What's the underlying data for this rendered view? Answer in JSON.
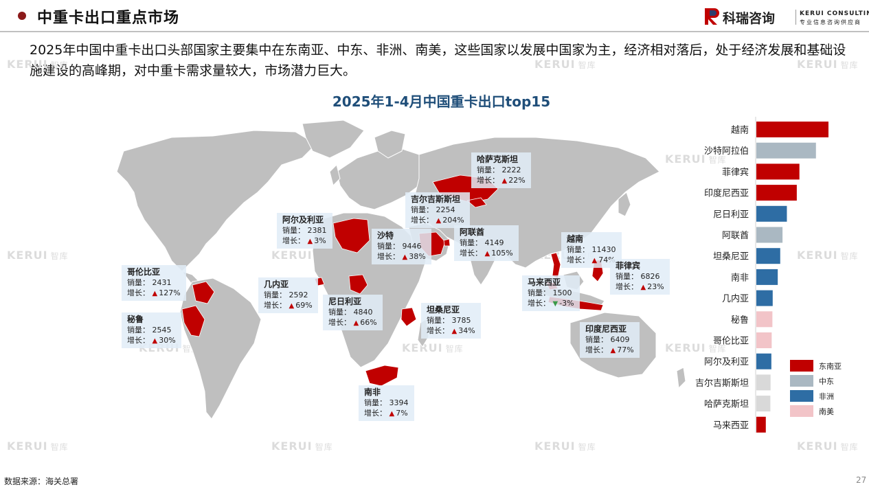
{
  "header": {
    "title": "中重卡出口重点市场",
    "logo_cn": "科瑞咨询",
    "logo_en": "KERUI CONSULTING",
    "logo_tagline": "专业信息咨询供应商"
  },
  "intro_text": "2025年中国中重卡出口头部国家主要集中在东南亚、中东、非洲、南美，这些国家以发展中国家为主，经济相对落后，处于经济发展和基础设施建设的高峰期，对中重卡需求量较大，市场潜力巨大。",
  "watermark": {
    "brand": "KERUI",
    "sub": "智库"
  },
  "labels": {
    "sales": "销量：",
    "growth": "增长："
  },
  "colors": {
    "东南亚": "#c00000",
    "中东": "#aab8c2",
    "非洲": "#2e6da4",
    "南美": "#f2c4c8",
    "other": "#d9d9d9",
    "land": "#bfbfbf"
  },
  "callouts": [
    {
      "name": "哈萨克斯坦",
      "sales": "2222",
      "growth": "22%",
      "dir": "up"
    },
    {
      "name": "吉尔吉斯斯坦",
      "sales": "2254",
      "growth": "204%",
      "dir": "up"
    },
    {
      "name": "阿尔及利亚",
      "sales": "2381",
      "growth": "3%",
      "dir": "up"
    },
    {
      "name": "沙特",
      "sales": "9446",
      "growth": "38%",
      "dir": "up"
    },
    {
      "name": "阿联酋",
      "sales": "4149",
      "growth": "105%",
      "dir": "up"
    },
    {
      "name": "越南",
      "sales": "11430",
      "growth": "74%",
      "dir": "up"
    },
    {
      "name": "菲律宾",
      "sales": "6826",
      "growth": "23%",
      "dir": "up"
    },
    {
      "name": "马来西亚",
      "sales": "1500",
      "growth": "-3%",
      "dir": "down"
    },
    {
      "name": "印度尼西亚",
      "sales": "6409",
      "growth": "77%",
      "dir": "up"
    },
    {
      "name": "哥伦比亚",
      "sales": "2431",
      "growth": "127%",
      "dir": "up"
    },
    {
      "name": "秘鲁",
      "sales": "2545",
      "growth": "30%",
      "dir": "up"
    },
    {
      "name": "几内亚",
      "sales": "2592",
      "growth": "69%",
      "dir": "up"
    },
    {
      "name": "尼日利亚",
      "sales": "4840",
      "growth": "66%",
      "dir": "up"
    },
    {
      "name": "坦桑尼亚",
      "sales": "3785",
      "growth": "34%",
      "dir": "up"
    },
    {
      "name": "南非",
      "sales": "3394",
      "growth": "7%",
      "dir": "up"
    }
  ],
  "chart_data": {
    "type": "bar",
    "orientation": "horizontal",
    "title": "2025年1-4月中国重卡出口top15",
    "categories": [
      "越南",
      "沙特阿拉伯",
      "菲律宾",
      "印度尼西亚",
      "尼日利亚",
      "阿联酋",
      "坦桑尼亚",
      "南非",
      "几内亚",
      "秘鲁",
      "哥伦比亚",
      "阿尔及利亚",
      "吉尔吉斯斯坦",
      "哈萨克斯坦",
      "马来西亚"
    ],
    "values": [
      11430,
      9446,
      6826,
      6409,
      4840,
      4149,
      3785,
      3394,
      2592,
      2545,
      2431,
      2381,
      2254,
      2222,
      1500
    ],
    "region": [
      "东南亚",
      "中东",
      "东南亚",
      "东南亚",
      "非洲",
      "中东",
      "非洲",
      "非洲",
      "非洲",
      "南美",
      "南美",
      "非洲",
      "other",
      "other",
      "东南亚"
    ],
    "legend": [
      "东南亚",
      "中东",
      "非洲",
      "南美"
    ],
    "legend_position": "bottom-right"
  },
  "source": "数据来源：海关总署",
  "page_number": "27"
}
